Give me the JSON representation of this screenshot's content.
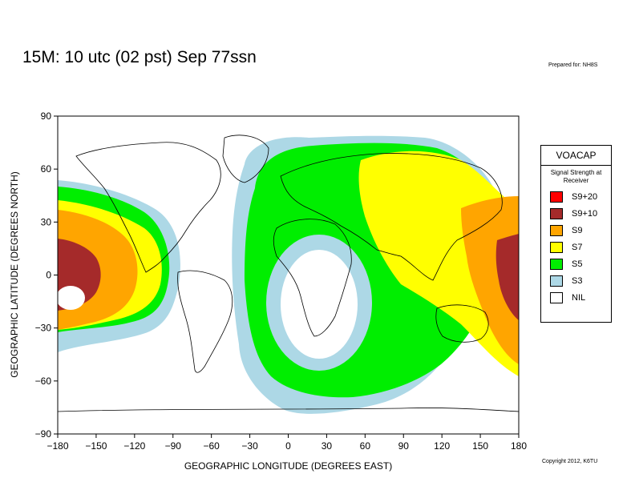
{
  "title": "15M:  10 utc (02 pst) Sep 77ssn",
  "prepared_for": "Prepared for: NH8S",
  "copyright": "Copyright 2012, K6TU",
  "axes": {
    "ylabel": "GEOGRAPHIC LATITUDE (DEGREES NORTH)",
    "xlabel": "GEOGRAPHIC LONGITUDE (DEGREES EAST)",
    "y_ticks": [
      "90",
      "60",
      "30",
      "0",
      "−30",
      "−60",
      "−90"
    ],
    "x_ticks": [
      "−180",
      "−150",
      "−120",
      "−90",
      "−60",
      "−30",
      "0",
      "30",
      "60",
      "90",
      "120",
      "150",
      "180"
    ],
    "xlim": [
      -180,
      180
    ],
    "ylim": [
      -90,
      90
    ]
  },
  "legend": {
    "title": "VOACAP",
    "subtitle": "Signal Strength at Receiver",
    "items": [
      {
        "label": "S9+20",
        "color": "#ff0000"
      },
      {
        "label": "S9+10",
        "color": "#a52a2a"
      },
      {
        "label": "S9",
        "color": "#ffa500"
      },
      {
        "label": "S7",
        "color": "#ffff00"
      },
      {
        "label": "S5",
        "color": "#00ee00"
      },
      {
        "label": "S3",
        "color": "#add8e6"
      },
      {
        "label": "NIL",
        "color": "#ffffff"
      }
    ]
  },
  "map": {
    "projection": "equirectangular",
    "coverage_colors": {
      "S9+10": "#a52a2a",
      "S9": "#ffa500",
      "S7": "#ffff00",
      "S5": "#00ee00",
      "S3": "#add8e6"
    }
  }
}
